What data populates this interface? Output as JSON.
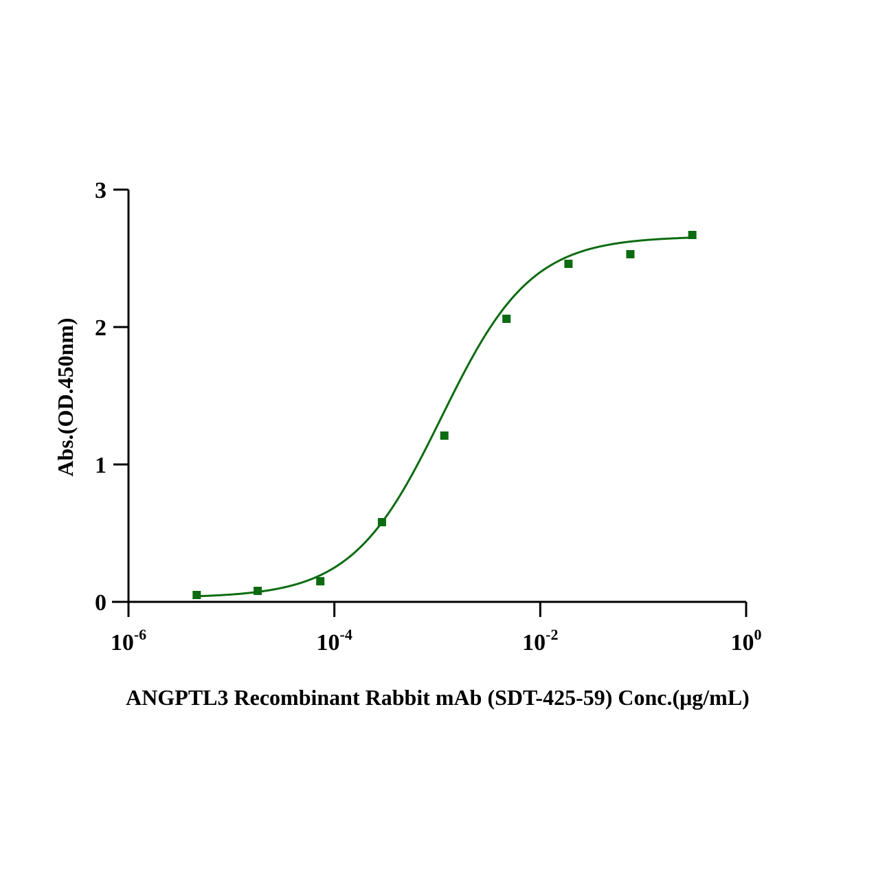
{
  "chart_data": {
    "type": "scatter",
    "title": "",
    "xlabel": "ANGPTL3 Recombinant Rabbit mAb (SDT-425-59) Conc.(μg/mL)",
    "ylabel": "Abs.(OD.450nm)",
    "x_scale": "log10",
    "xlim": [
      1e-06,
      1
    ],
    "ylim": [
      0,
      3
    ],
    "x_ticks": [
      {
        "base": "10",
        "exp": "-6"
      },
      {
        "base": "10",
        "exp": "-4"
      },
      {
        "base": "10",
        "exp": "-2"
      },
      {
        "base": "10",
        "exp": "0"
      }
    ],
    "y_ticks": [
      "0",
      "1",
      "2",
      "3"
    ],
    "grid": false,
    "legend": "none",
    "series": [
      {
        "color": "#0b6b10",
        "marker": "square",
        "x": [
          4.6e-06,
          1.8e-05,
          7.3e-05,
          0.00029,
          0.00117,
          0.0047,
          0.0188,
          0.075,
          0.3
        ],
        "y": [
          0.05,
          0.08,
          0.15,
          0.58,
          1.21,
          2.06,
          2.46,
          2.53,
          2.67
        ]
      }
    ],
    "fit_curve": {
      "model": "4PL",
      "color": "#0b6b10",
      "bottom": 0.03,
      "top": 2.66,
      "ec50": 0.0011,
      "hill": 1.0
    }
  }
}
